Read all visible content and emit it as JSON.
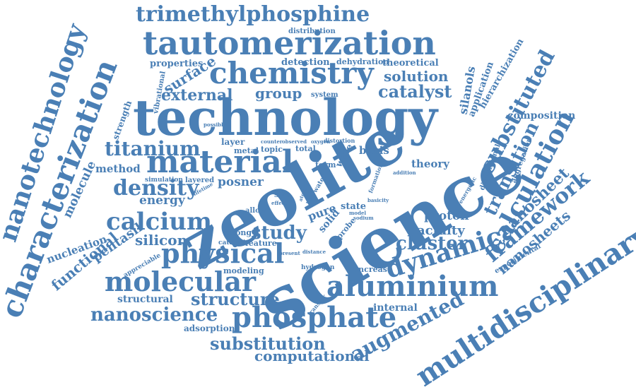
{
  "colors": {
    "word": "#4a7fb5",
    "background": "#ffffff"
  },
  "words": [
    "trimethylphosphine",
    "tautomerization",
    "chemistry",
    "technology",
    "zeolite",
    "science",
    "nanotechnology",
    "characterization",
    "material",
    "aluminium",
    "phosphate",
    "multidisciplinary",
    "molecular",
    "physical",
    "calcium",
    "density",
    "titanium",
    "dynamic",
    "calculation",
    "framework",
    "substituted",
    "nanoscience",
    "augmented",
    "substitution",
    "computational",
    "structure",
    "study",
    "cluster",
    "transition",
    "nanosheet",
    "nanosheets",
    "catalyst",
    "solution",
    "group",
    "external",
    "surface",
    "properties",
    "distribution",
    "detection",
    "dehydration",
    "theoretical",
    "silanols",
    "application",
    "hierarchization",
    "composition",
    "aggregation",
    "dimensional",
    "theory",
    "basis",
    "proton",
    "acidity",
    "silicon",
    "pentasil",
    "functional",
    "nucleation",
    "energy",
    "posner",
    "molecule",
    "method",
    "layered",
    "simulation",
    "lifetime",
    "vibrational",
    "strength",
    "possible",
    "layer",
    "metal",
    "topic",
    "total",
    "oxygen",
    "distortion",
    "form",
    "wave",
    "addition",
    "formation",
    "water",
    "energetic",
    "experimental",
    "site",
    "allow",
    "atom",
    "bond",
    "pure",
    "solid",
    "state",
    "model",
    "sodium",
    "probe",
    "basicity",
    "effect",
    "counter",
    "observed",
    "strong",
    "feature",
    "catalysis",
    "appreciable",
    "modeling",
    "hydrogen",
    "present",
    "distance",
    "increase",
    "structural",
    "adsorption",
    "internal",
    "transfer",
    "system"
  ]
}
